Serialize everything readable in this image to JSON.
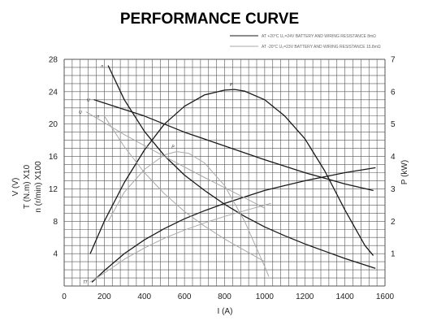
{
  "chart_data": {
    "type": "line",
    "title": "PERFORMANCE CURVE",
    "xlabel": "I (A)",
    "ylabel_left": [
      "V (V)",
      "T (N.m) X10",
      "n (r/min) X100"
    ],
    "ylabel_right": "P (kW)",
    "xlim": [
      0,
      1600
    ],
    "ylim_left": [
      0,
      28
    ],
    "ylim_right": [
      0,
      7
    ],
    "x_ticks": [
      0,
      200,
      400,
      600,
      800,
      1000,
      1200,
      1400,
      1600
    ],
    "y_ticks_left": [
      4,
      8,
      12,
      16,
      20,
      24,
      28
    ],
    "y_ticks_right": [
      1,
      2,
      3,
      4,
      5,
      6,
      7
    ],
    "grid": true,
    "legend_position": "top-right",
    "legend": [
      {
        "text": "AT +20°C  U₀=24V  BATTERY AND WIRING RESISTANCE 8mΩ",
        "style": "solid"
      },
      {
        "text": "AT -20°C  U₀=23V  BATTERY AND WIRING RESISTANCE 15.8mΩ",
        "style": "dashed"
      }
    ],
    "series": [
      {
        "name": "n",
        "axis": "left",
        "style": "solid",
        "x": [
          220,
          300,
          400,
          500,
          600,
          700,
          800,
          900,
          1000,
          1100,
          1200,
          1300,
          1400,
          1500,
          1550
        ],
        "y": [
          27.2,
          23.0,
          19.1,
          16.1,
          13.7,
          11.8,
          10.1,
          8.6,
          7.3,
          6.2,
          5.2,
          4.3,
          3.4,
          2.6,
          2.2
        ]
      },
      {
        "name": "U",
        "axis": "left",
        "style": "solid",
        "x": [
          150,
          400,
          600,
          800,
          1000,
          1200,
          1400,
          1540
        ],
        "y": [
          23.0,
          21.0,
          19.0,
          17.3,
          15.6,
          14.0,
          12.6,
          11.8
        ]
      },
      {
        "name": "T",
        "axis": "left",
        "style": "solid",
        "x": [
          140,
          200,
          300,
          400,
          500,
          600,
          700,
          800,
          900,
          1000,
          1100,
          1200,
          1300,
          1400,
          1500,
          1550
        ],
        "y": [
          0.5,
          1.9,
          4.0,
          5.7,
          7.1,
          8.3,
          9.3,
          10.2,
          11.0,
          11.8,
          12.4,
          13.0,
          13.5,
          14.0,
          14.4,
          14.6
        ]
      },
      {
        "name": "P",
        "axis": "right",
        "style": "solid",
        "x": [
          130,
          200,
          300,
          400,
          500,
          600,
          700,
          800,
          850,
          900,
          1000,
          1100,
          1200,
          1300,
          1400,
          1500,
          1540
        ],
        "y": [
          1.0,
          2.0,
          3.2,
          4.2,
          5.0,
          5.55,
          5.9,
          6.05,
          6.07,
          6.02,
          5.75,
          5.25,
          4.55,
          3.55,
          2.35,
          1.25,
          0.95
        ]
      },
      {
        "name": "n",
        "axis": "left",
        "style": "dashed",
        "x": [
          200,
          300,
          400,
          500,
          600,
          700,
          800,
          900,
          1000
        ],
        "y": [
          21.0,
          17.2,
          14.0,
          11.4,
          9.2,
          7.4,
          5.8,
          4.4,
          3.0
        ]
      },
      {
        "name": "U",
        "axis": "left",
        "style": "dashed",
        "x": [
          110,
          300,
          500,
          700,
          900,
          1000
        ],
        "y": [
          21.5,
          18.7,
          16.0,
          13.4,
          10.9,
          9.6
        ]
      },
      {
        "name": "T",
        "axis": "left",
        "style": "dashed",
        "x": [
          130,
          200,
          300,
          400,
          500,
          600,
          700,
          800,
          900,
          1000,
          1030
        ],
        "y": [
          0.5,
          1.6,
          3.3,
          4.7,
          5.9,
          6.9,
          7.8,
          8.6,
          9.3,
          10.0,
          10.2
        ]
      },
      {
        "name": "P",
        "axis": "right",
        "style": "dashed",
        "x": [
          220,
          300,
          400,
          500,
          560,
          620,
          700,
          800,
          900,
          950,
          1000,
          1020
        ],
        "y": [
          2.0,
          2.9,
          3.6,
          4.05,
          4.15,
          4.1,
          3.8,
          3.1,
          2.0,
          1.3,
          0.6,
          0.3
        ]
      }
    ]
  }
}
